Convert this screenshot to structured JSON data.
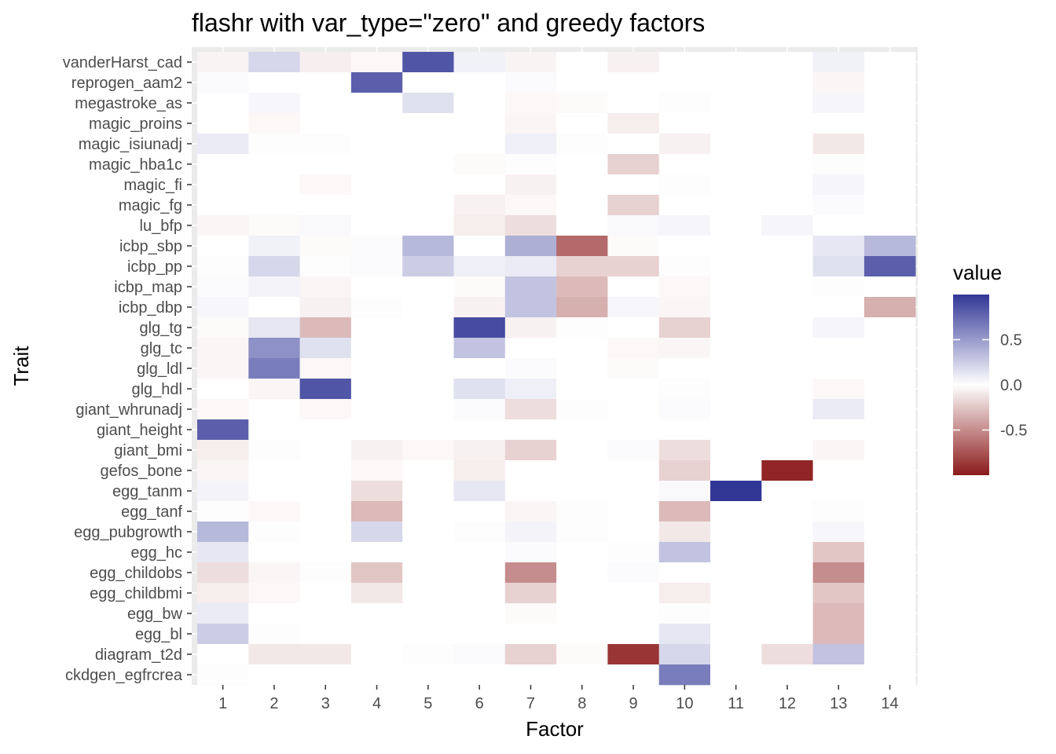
{
  "chart_data": {
    "type": "heatmap",
    "title": "flashr with var_type=\"zero\" and greedy factors",
    "xlabel": "Factor",
    "ylabel": "Trait",
    "x": [
      "1",
      "2",
      "3",
      "4",
      "5",
      "6",
      "7",
      "8",
      "9",
      "10",
      "11",
      "12",
      "13",
      "14"
    ],
    "y": [
      "vanderHarst_cad",
      "reprogen_aam2",
      "megastroke_as",
      "magic_proins",
      "magic_isiunadj",
      "magic_hba1c",
      "magic_fi",
      "magic_fg",
      "lu_bfp",
      "icbp_sbp",
      "icbp_pp",
      "icbp_map",
      "icbp_dbp",
      "glg_tg",
      "glg_tc",
      "glg_ldl",
      "glg_hdl",
      "giant_whrunadj",
      "giant_height",
      "giant_bmi",
      "gefos_bone",
      "egg_tanm",
      "egg_tanf",
      "egg_pubgrowth",
      "egg_hc",
      "egg_childobs",
      "egg_childbmi",
      "egg_bw",
      "egg_bl",
      "diagram_t2d",
      "ckdgen_egfrcrea"
    ],
    "values": [
      [
        -0.05,
        0.2,
        -0.07,
        -0.03,
        0.85,
        0.07,
        -0.05,
        0,
        -0.06,
        0,
        0,
        0,
        0.07,
        0
      ],
      [
        0.02,
        0,
        0,
        0.8,
        0,
        0,
        0.02,
        0,
        0,
        0,
        0,
        0,
        -0.04,
        0
      ],
      [
        0,
        0.04,
        0,
        0,
        0.15,
        0,
        -0.03,
        -0.02,
        0,
        0.01,
        0,
        0,
        0.05,
        0
      ],
      [
        0,
        -0.03,
        0,
        0,
        0,
        0,
        -0.04,
        0,
        -0.08,
        0,
        0,
        0,
        0,
        0
      ],
      [
        0.1,
        0.01,
        0.01,
        0,
        0,
        0,
        0.08,
        0.01,
        0,
        -0.06,
        0,
        0,
        -0.1,
        0
      ],
      [
        0,
        0,
        0,
        0,
        0,
        -0.02,
        0.01,
        0,
        -0.2,
        0,
        0,
        0,
        0.01,
        0
      ],
      [
        0,
        0,
        -0.03,
        0,
        0,
        0,
        -0.06,
        0,
        0,
        0.01,
        0,
        0,
        0.05,
        0
      ],
      [
        0,
        0,
        0,
        0,
        0,
        -0.06,
        -0.03,
        0,
        -0.2,
        0,
        0,
        0,
        0.02,
        0
      ],
      [
        -0.04,
        -0.02,
        0.03,
        0,
        0,
        -0.08,
        -0.15,
        0,
        0.03,
        0.05,
        0,
        0.05,
        0,
        0
      ],
      [
        0,
        0.07,
        -0.02,
        0.02,
        0.35,
        0,
        0.4,
        -0.65,
        -0.02,
        0,
        0,
        0,
        0.12,
        0.35
      ],
      [
        0.01,
        0.2,
        0.01,
        0.02,
        0.25,
        0.08,
        0.1,
        -0.2,
        -0.2,
        0.01,
        0,
        0,
        0.15,
        0.8
      ],
      [
        0.02,
        0.06,
        -0.04,
        0,
        0,
        -0.02,
        0.3,
        -0.3,
        0,
        -0.03,
        0,
        0,
        0.01,
        0
      ],
      [
        0.04,
        0,
        -0.06,
        0.01,
        0,
        -0.06,
        0.3,
        -0.35,
        0.04,
        -0.04,
        0,
        0,
        0,
        -0.35
      ],
      [
        -0.02,
        0.12,
        -0.3,
        0,
        0,
        0.9,
        -0.06,
        0.01,
        0,
        -0.2,
        0,
        0,
        0.05,
        0
      ],
      [
        -0.04,
        0.55,
        0.15,
        0,
        0,
        0.3,
        0,
        0,
        -0.03,
        -0.04,
        0,
        0,
        0,
        0
      ],
      [
        -0.04,
        0.65,
        -0.03,
        0,
        0,
        0,
        0.02,
        0,
        -0.02,
        0,
        0,
        0,
        0,
        0
      ],
      [
        0,
        -0.04,
        0.85,
        0,
        0,
        0.15,
        0.08,
        0,
        0,
        0.01,
        0,
        0,
        -0.03,
        0
      ],
      [
        -0.03,
        0,
        -0.03,
        0,
        0,
        0.02,
        -0.15,
        0.01,
        0,
        0.02,
        0,
        0,
        0.1,
        0
      ],
      [
        0.8,
        0,
        0,
        0,
        0,
        0,
        0,
        0,
        0,
        0,
        0,
        0,
        0,
        0
      ],
      [
        -0.08,
        0.01,
        0,
        -0.06,
        -0.03,
        -0.06,
        -0.2,
        0,
        0.02,
        -0.15,
        0,
        0,
        -0.04,
        0
      ],
      [
        -0.04,
        0,
        0,
        -0.03,
        0,
        -0.08,
        0,
        0,
        0,
        -0.2,
        0,
        -0.95,
        0,
        0
      ],
      [
        0.06,
        0,
        0,
        -0.15,
        0,
        0.12,
        0,
        0,
        0,
        0.03,
        1.0,
        0,
        0,
        0
      ],
      [
        0.01,
        -0.03,
        0,
        -0.3,
        0,
        0,
        -0.04,
        -0.01,
        0,
        -0.3,
        0,
        0,
        0.01,
        0
      ],
      [
        0.35,
        0.01,
        0,
        0.2,
        0,
        0.01,
        0.06,
        0.01,
        0,
        -0.1,
        0,
        0,
        0.04,
        0
      ],
      [
        0.12,
        0,
        0,
        0,
        0,
        0,
        0.02,
        0,
        0.01,
        0.3,
        0,
        0,
        -0.25,
        0
      ],
      [
        -0.15,
        -0.04,
        0.01,
        -0.25,
        0,
        0,
        -0.5,
        0,
        0.02,
        0,
        0,
        0,
        -0.5,
        0
      ],
      [
        -0.08,
        -0.03,
        0,
        -0.1,
        0,
        0,
        -0.2,
        0,
        0,
        -0.08,
        0,
        0,
        -0.25,
        0
      ],
      [
        0.1,
        0,
        0,
        0,
        0,
        0,
        -0.02,
        0,
        0,
        0.01,
        0,
        0,
        -0.3,
        0
      ],
      [
        0.25,
        0.01,
        0,
        0,
        0,
        0,
        0,
        0,
        0,
        0.12,
        0,
        0,
        -0.3,
        0
      ],
      [
        0,
        -0.1,
        -0.1,
        0,
        0.01,
        0.02,
        -0.2,
        -0.02,
        -0.88,
        0.2,
        0,
        -0.15,
        0.3,
        0
      ],
      [
        0.01,
        0,
        0,
        0,
        0,
        0,
        0,
        0,
        0,
        0.65,
        0,
        0,
        0,
        0
      ]
    ],
    "colors": {
      "low": "#8b1a1a",
      "mid": "#ffffff",
      "high": "#323796"
    },
    "legend": {
      "title": "value",
      "ticks": [
        0.5,
        0.0,
        -0.5
      ],
      "tick_labels": [
        "0.5",
        "0.0",
        "-0.5"
      ],
      "range": [
        -1.0,
        1.0
      ],
      "placement": "right"
    },
    "grid": true,
    "panel_background": "#ebebeb"
  }
}
